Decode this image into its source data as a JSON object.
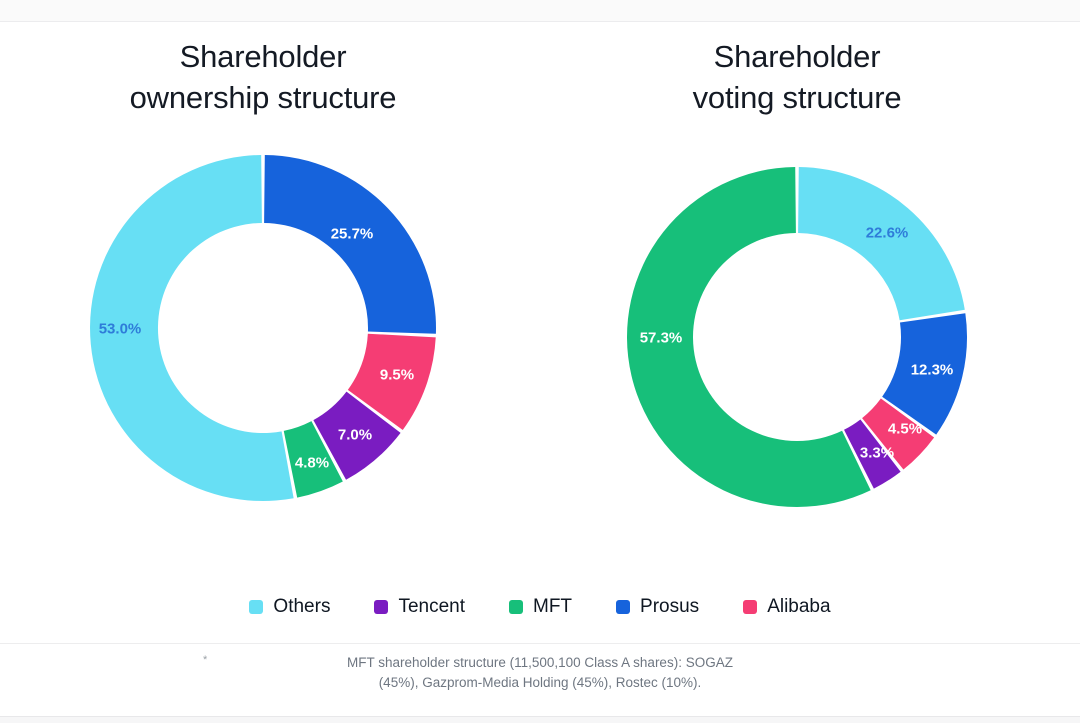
{
  "footnote": {
    "marker": "*",
    "line1": "MFT shareholder structure (11,500,100 Class A shares): SOGAZ",
    "line2": "(45%), Gazprom-Media Holding (45%), Rostec (10%)."
  },
  "legend": [
    {
      "label": "Others",
      "color": "#67DFF4"
    },
    {
      "label": "Tencent",
      "color": "#7A1CC1"
    },
    {
      "label": "MFT",
      "color": "#17BF7A"
    },
    {
      "label": "Prosus",
      "color": "#1663DC"
    },
    {
      "label": "Alibaba",
      "color": "#F53D74"
    }
  ],
  "chart_data": [
    {
      "type": "pie",
      "donut": true,
      "title": "Shareholder ownership structure",
      "title_lines": [
        "Shareholder",
        "ownership structure"
      ],
      "start_angle_deg": 0,
      "direction": "clockwise",
      "outer_radius": 173,
      "inner_radius": 105,
      "segments": [
        {
          "name": "Prosus",
          "value": 25.7,
          "label": "25.7%",
          "color": "#1663DC",
          "label_color": "#ffffff",
          "label_xy": [
            269,
            86
          ]
        },
        {
          "name": "Alibaba",
          "value": 9.5,
          "label": "9.5%",
          "color": "#F53D74",
          "label_color": "#ffffff",
          "label_xy": [
            314,
            227
          ]
        },
        {
          "name": "Tencent",
          "value": 7.0,
          "label": "7.0%",
          "color": "#7A1CC1",
          "label_color": "#ffffff",
          "label_xy": [
            272,
            287
          ]
        },
        {
          "name": "MFT",
          "value": 4.8,
          "label": "4.8%",
          "color": "#17BF7A",
          "label_color": "#ffffff",
          "label_xy": [
            229,
            315
          ]
        },
        {
          "name": "Others",
          "value": 53.0,
          "label": "53.0%",
          "color": "#67DFF4",
          "label_color": "#2E7CD9",
          "label_xy": [
            37,
            181
          ]
        }
      ]
    },
    {
      "type": "pie",
      "donut": true,
      "title": "Shareholder voting structure",
      "title_lines": [
        "Shareholder",
        "voting structure"
      ],
      "start_angle_deg": 0,
      "direction": "clockwise",
      "outer_radius": 170,
      "inner_radius": 104,
      "segments": [
        {
          "name": "Others",
          "value": 22.6,
          "label": "22.6%",
          "color": "#67DFF4",
          "label_color": "#2E7CD9",
          "label_xy": [
            270,
            76
          ]
        },
        {
          "name": "Prosus",
          "value": 12.3,
          "label": "12.3%",
          "color": "#1663DC",
          "label_color": "#ffffff",
          "label_xy": [
            315,
            213
          ]
        },
        {
          "name": "Alibaba",
          "value": 4.5,
          "label": "4.5%",
          "color": "#F53D74",
          "label_color": "#ffffff",
          "label_xy": [
            288,
            272
          ]
        },
        {
          "name": "Tencent",
          "value": 3.3,
          "label": "3.3%",
          "color": "#7A1CC1",
          "label_color": "#ffffff",
          "label_xy": [
            260,
            296
          ]
        },
        {
          "name": "MFT",
          "value": 57.3,
          "label": "57.3%",
          "color": "#17BF7A",
          "label_color": "#ffffff",
          "label_xy": [
            44,
            181
          ]
        }
      ]
    }
  ]
}
